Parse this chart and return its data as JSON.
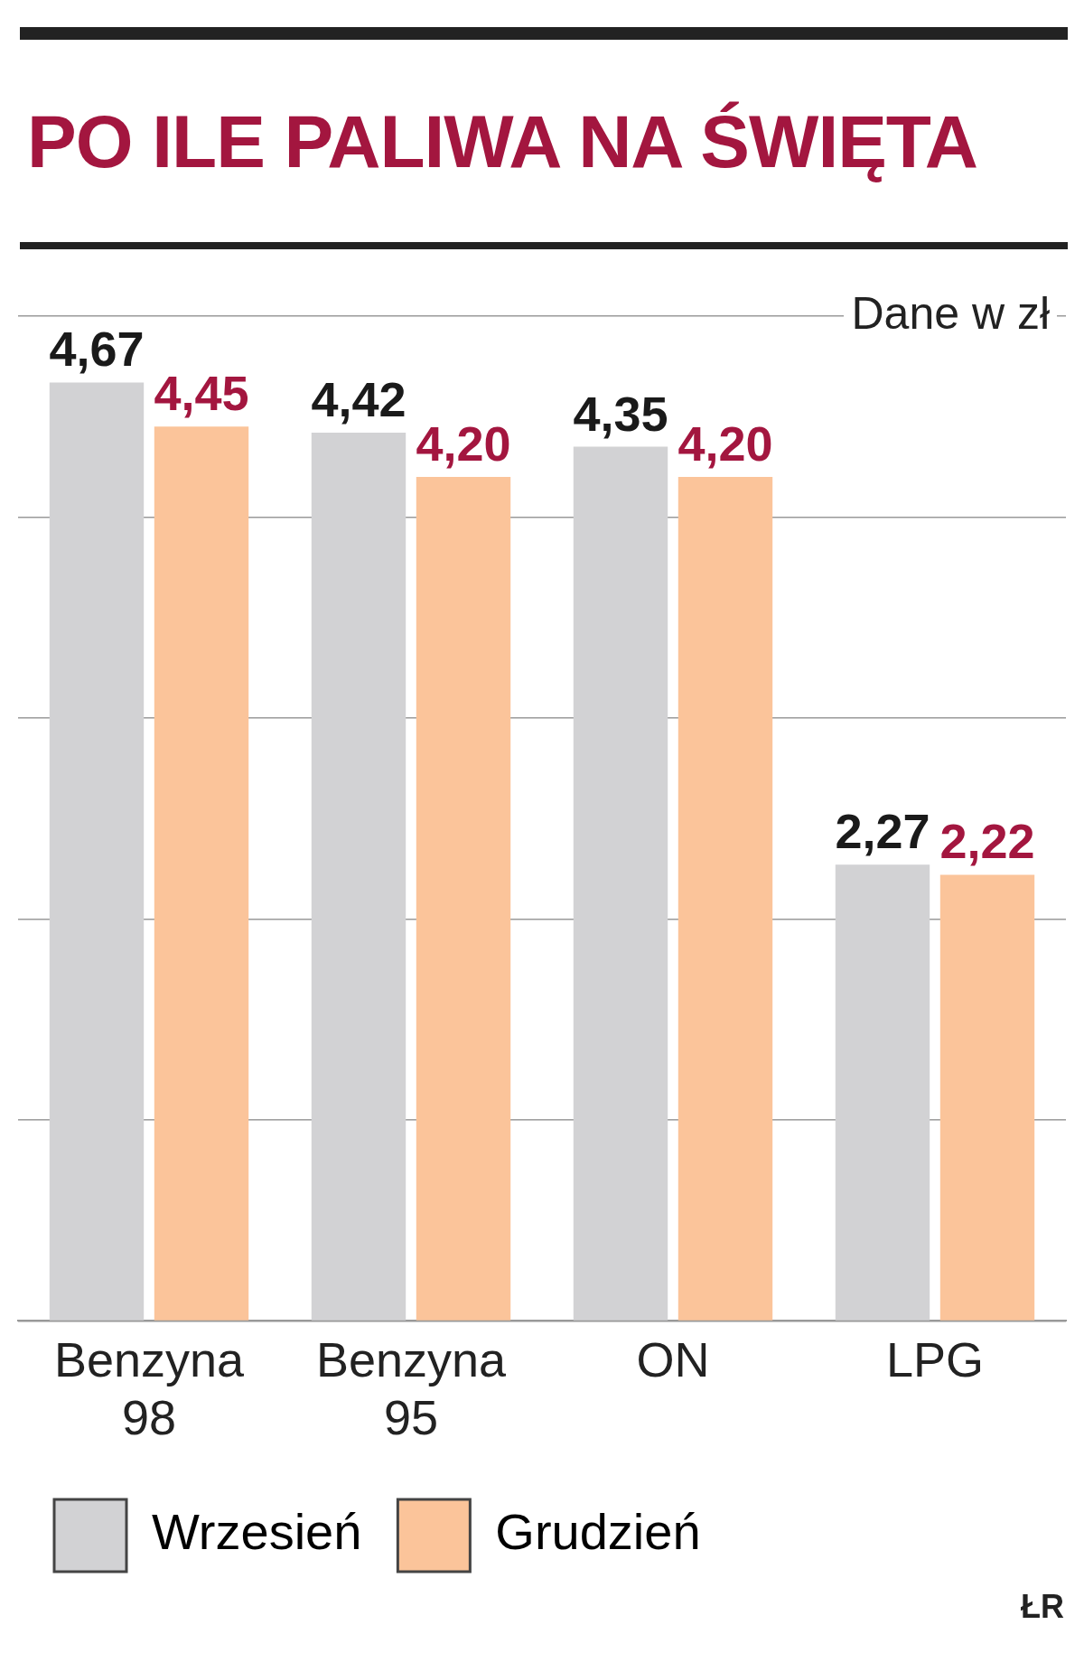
{
  "chart_data": {
    "type": "bar",
    "title": "PO ILE PALIWA NA ŚWIĘTA",
    "subtitle": "Dane w zł",
    "categories": [
      "Benzyna 98",
      "Benzyna 95",
      "ON",
      "LPG"
    ],
    "series": [
      {
        "name": "Wrzesień",
        "color": "#d2d2d4",
        "values": [
          4.67,
          4.42,
          4.35,
          2.27
        ],
        "value_labels": [
          "4,67",
          "4,42",
          "4,35",
          "2,27"
        ]
      },
      {
        "name": "Grudzień",
        "color": "#fbc49a",
        "values": [
          4.45,
          4.2,
          4.2,
          2.22
        ],
        "value_labels": [
          "4,45",
          "4,20",
          "4,20",
          "2,22"
        ]
      }
    ],
    "ylim": [
      0,
      5
    ],
    "yticks": [
      {
        "value": 0,
        "label": null
      },
      {
        "value": 1,
        "label": null
      },
      {
        "value": 2,
        "label": null
      },
      {
        "value": 3,
        "label": null
      },
      {
        "value": 4,
        "label": null
      },
      {
        "value": 5,
        "label": null
      }
    ],
    "grid": "y",
    "tick_labels": "x",
    "legend": "bottom",
    "annotations": [
      "ŁR"
    ]
  }
}
